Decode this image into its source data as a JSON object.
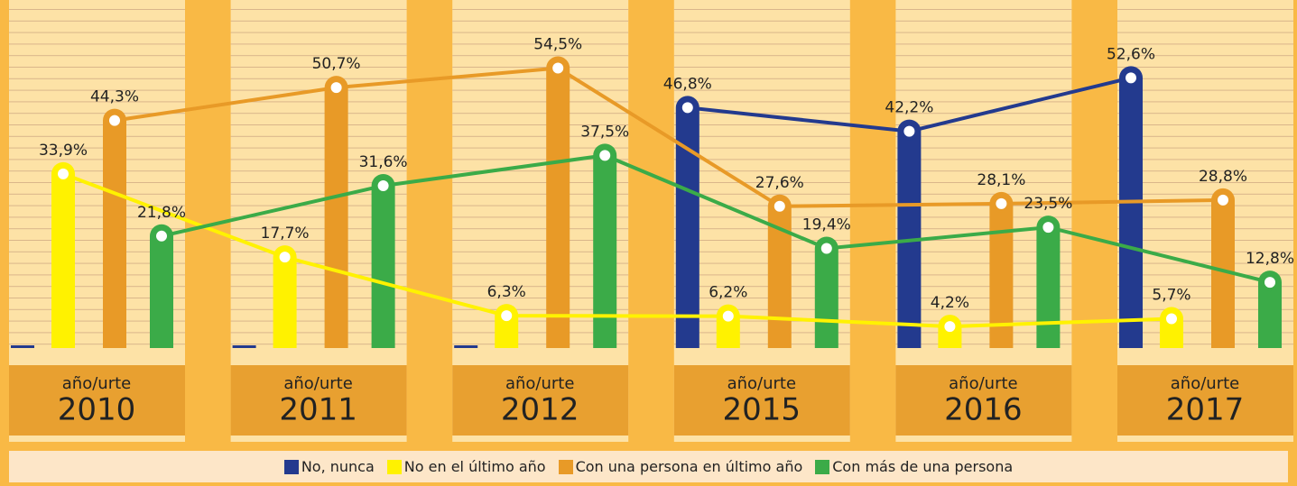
{
  "chart_data": {
    "type": "bar_line",
    "category_label": "año/urte",
    "categories": [
      "2010",
      "2011",
      "2012",
      "2015",
      "2016",
      "2017"
    ],
    "ylim": [
      0,
      66
    ],
    "series": [
      {
        "name": "No, nunca",
        "color": "#233a8e",
        "values": [
          null,
          null,
          null,
          46.8,
          42.2,
          52.6
        ],
        "value_labels": [
          null,
          null,
          null,
          "46,8%",
          "42,2%",
          "52,6%"
        ]
      },
      {
        "name": "No en el último año",
        "color": "#fff200",
        "values": [
          33.9,
          17.7,
          6.3,
          6.2,
          4.2,
          5.7
        ],
        "value_labels": [
          "33,9%",
          "17,7%",
          "6,3%",
          "6,2%",
          "4,2%",
          "5,7%"
        ]
      },
      {
        "name": "Con una persona en último año",
        "color": "#e89a27",
        "values": [
          44.3,
          50.7,
          54.5,
          27.6,
          28.1,
          28.8
        ],
        "value_labels": [
          "44,3%",
          "50,7%",
          "54,5%",
          "27,6%",
          "28,1%",
          "28,8%"
        ]
      },
      {
        "name": "Con más de una persona",
        "color": "#3bab48",
        "values": [
          21.8,
          31.6,
          37.5,
          19.4,
          23.5,
          12.8
        ],
        "value_labels": [
          "21,8%",
          "31,6%",
          "37,5%",
          "19,4%",
          "23,5%",
          "12,8%"
        ]
      }
    ]
  }
}
